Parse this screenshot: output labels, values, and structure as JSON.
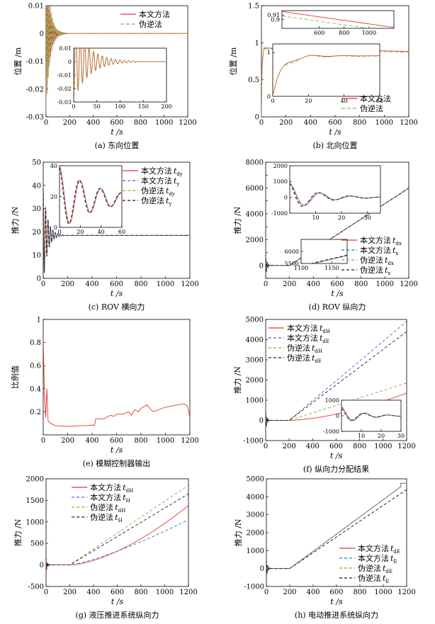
{
  "colors": {
    "red": "#e8362d",
    "blue": "#2f6fce",
    "olive": "#9aa23a",
    "black": "#1c1c1c",
    "green": "#8fb45a"
  },
  "chart_data": [
    {
      "id": "a",
      "type": "line",
      "caption": "(a) 东向位置",
      "xlabel": "t /s",
      "ylabel": "位置 /m",
      "xlim": [
        0,
        1200
      ],
      "ylim": [
        -0.03,
        0.01
      ],
      "xticks": [
        0,
        200,
        400,
        600,
        800,
        1000,
        1200
      ],
      "yticks": [
        -0.03,
        -0.02,
        -0.01,
        0,
        0.01
      ],
      "ytick_labels": [
        "-0.03",
        "-0.02",
        "-0.01",
        "0",
        "0.01"
      ],
      "legend_position": "top-right",
      "series": [
        {
          "name": "本文方法",
          "color": "red",
          "dash": "",
          "model": "decay",
          "params": {
            "base": 0,
            "amp": -0.029,
            "tau": 32,
            "period": 9.5,
            "phase": 0,
            "slope": 0,
            "start": 0
          }
        },
        {
          "name": "伪逆法",
          "color": "green",
          "dash": "5,3",
          "model": "decay",
          "params": {
            "base": 0,
            "amp": -0.029,
            "tau": 32,
            "period": 9.5,
            "phase": 0.3,
            "slope": 0,
            "start": 0
          }
        }
      ],
      "inset": {
        "xlim": [
          0,
          200
        ],
        "ylim": [
          -0.03,
          0.01
        ],
        "xticks": [
          0,
          50,
          100,
          150,
          200
        ],
        "yticks": [
          -0.03,
          -0.02,
          -0.01,
          0,
          0.01
        ],
        "ytick_labels": [
          "-0.03",
          "-0.02",
          "-0.01",
          "0",
          "0.01"
        ],
        "series_ref": [
          0,
          1
        ]
      }
    },
    {
      "id": "b",
      "type": "line",
      "caption": "(b) 北向位置",
      "xlabel": "t /s",
      "ylabel": "位置 /m",
      "xlim": [
        0,
        1200
      ],
      "ylim": [
        0,
        1.5
      ],
      "xticks": [
        0,
        200,
        400,
        600,
        800,
        1000,
        1200
      ],
      "yticks": [
        0,
        0.5,
        1,
        1.5
      ],
      "ytick_labels": [
        "0",
        "0.5",
        "1",
        "1.5"
      ],
      "legend_position": "bottom-right",
      "series": [
        {
          "name": "本文方法",
          "color": "red",
          "dash": "",
          "model": "step",
          "params": {
            "base": 0.93,
            "amp": 0.1,
            "tau": 14,
            "period": 18,
            "phase": 0,
            "rise": 5,
            "slope": -4e-05,
            "start": 0
          }
        },
        {
          "name": "伪逆法",
          "color": "green",
          "dash": "5,3",
          "model": "step",
          "params": {
            "base": 0.92,
            "amp": 0.14,
            "tau": 14,
            "period": 18,
            "phase": 0.4,
            "rise": 5,
            "slope": -4e-05,
            "start": 0
          }
        }
      ],
      "insets": [
        {
          "xlim": [
            300,
            1200
          ],
          "ylim": [
            0.88,
            0.92
          ],
          "xticks": [
            600,
            800,
            1000
          ],
          "yticks": [
            0.9,
            0.91
          ],
          "ytick_labels": [
            "0.9",
            "0.91"
          ]
        },
        {
          "xlim": [
            0,
            60
          ],
          "ylim": [
            0,
            1.2
          ],
          "xticks": [
            0,
            20,
            40,
            60
          ],
          "yticks": [
            0,
            1
          ],
          "ytick_labels": [
            "0",
            "1"
          ]
        }
      ]
    },
    {
      "id": "c",
      "type": "line",
      "caption": "(c) ROV 横向力",
      "xlabel": "t /s",
      "ylabel": "推力 /N",
      "xlim": [
        0,
        1200
      ],
      "ylim": [
        0,
        50
      ],
      "xticks": [
        0,
        200,
        400,
        600,
        800,
        1000,
        1200
      ],
      "yticks": [
        0,
        10,
        20,
        30,
        40,
        50
      ],
      "ytick_labels": [
        "0",
        "10",
        "20",
        "30",
        "40",
        "50"
      ],
      "legend_position": "top-right",
      "series": [
        {
          "name": "本文方法",
          "sub": "dy",
          "color": "red",
          "dash": "",
          "model": "decay",
          "params": {
            "base": 18.5,
            "amp": 21,
            "tau": 35,
            "period": 20,
            "phase": 0,
            "slope": 0,
            "start": 0
          }
        },
        {
          "name": "本文方法",
          "sub": "y",
          "color": "blue",
          "dash": "4,3",
          "model": "decay",
          "params": {
            "base": 18.5,
            "amp": 21,
            "tau": 35,
            "period": 20,
            "phase": 0.1,
            "slope": 0,
            "start": 0
          }
        },
        {
          "name": "伪逆法",
          "sub": "dy",
          "color": "olive",
          "dash": "4,3",
          "model": "decay",
          "params": {
            "base": 18.5,
            "amp": 21,
            "tau": 35,
            "period": 20,
            "phase": 0.2,
            "slope": 0,
            "start": 0
          }
        },
        {
          "name": "伪逆法",
          "sub": "y",
          "color": "black",
          "dash": "4,3",
          "model": "decay",
          "params": {
            "base": 18.5,
            "amp": 21,
            "tau": 35,
            "period": 20,
            "phase": 0.25,
            "slope": 0,
            "start": 0
          }
        }
      ],
      "inset": {
        "xlim": [
          0,
          60
        ],
        "ylim": [
          0,
          40
        ],
        "xticks": [
          0,
          20,
          40,
          60
        ],
        "yticks": [
          0,
          20,
          40
        ],
        "ytick_labels": [
          "0",
          "20",
          "40"
        ]
      }
    },
    {
      "id": "d",
      "type": "line",
      "caption": "(d) ROV 纵向力",
      "xlabel": "t /s",
      "ylabel": "推力 /N",
      "xlim": [
        0,
        1200
      ],
      "ylim": [
        -1000,
        8000
      ],
      "xticks": [
        0,
        200,
        400,
        600,
        800,
        1000,
        1200
      ],
      "yticks": [
        -1000,
        0,
        1000,
        2000,
        3000,
        4000,
        5000,
        6000,
        7000,
        8000
      ],
      "ytick_labels": [
        "",
        "0",
        "",
        "2000",
        "",
        "4000",
        "",
        "6000",
        "",
        "8000"
      ],
      "legend_position": "bottom-right",
      "series": [
        {
          "name": "本文方法",
          "sub": "dx",
          "color": "red",
          "dash": "",
          "model": "ramp",
          "params": {
            "base": 0,
            "amp": 1500,
            "tau": 10,
            "period": 12,
            "phase": 0,
            "start": 200,
            "slope": 5.98
          }
        },
        {
          "name": "本文方法",
          "sub": "x",
          "color": "blue",
          "dash": "4,3",
          "model": "ramp",
          "params": {
            "base": 0,
            "amp": 1500,
            "tau": 10,
            "period": 12,
            "phase": 0.1,
            "start": 200,
            "slope": 5.98
          }
        },
        {
          "name": "伪逆法",
          "sub": "dx",
          "color": "olive",
          "dash": "4,3",
          "model": "ramp",
          "params": {
            "base": 0,
            "amp": 1600,
            "tau": 10,
            "period": 12,
            "phase": 0.3,
            "start": 200,
            "slope": 6.0
          }
        },
        {
          "name": "伪逆法",
          "sub": "x",
          "color": "black",
          "dash": "4,3",
          "model": "ramp",
          "params": {
            "base": 0,
            "amp": 1600,
            "tau": 10,
            "period": 12,
            "phase": 0.35,
            "start": 200,
            "slope": 6.0
          }
        }
      ],
      "insets": [
        {
          "xlim": [
            0,
            35
          ],
          "ylim": [
            -1000,
            2000
          ],
          "xticks": [
            10,
            20,
            30
          ],
          "yticks": [
            -1000,
            0,
            1000,
            2000
          ],
          "ytick_labels": [
            "-1000",
            "0",
            "1000",
            "2000"
          ]
        },
        {
          "xlim": [
            1100,
            1175
          ],
          "ylim": [
            5500,
            6500
          ],
          "xticks": [
            1100,
            1150
          ],
          "yticks": [
            5500,
            6000
          ],
          "ytick_labels": [
            "5500",
            "6000"
          ]
        }
      ]
    },
    {
      "id": "e",
      "type": "line",
      "caption": "(e) 模糊控制器输出",
      "xlabel": "t /s",
      "ylabel": "比例值",
      "xlim": [
        0,
        1200
      ],
      "ylim": [
        0,
        1
      ],
      "xticks": [
        0,
        200,
        400,
        600,
        800,
        1000,
        1200
      ],
      "yticks": [
        0.2,
        0.4,
        0.6,
        0.8,
        1
      ],
      "ytick_labels": [
        "0.2",
        "0.4",
        "0.6",
        "0.8",
        "1"
      ],
      "series": [
        {
          "name": "比例值",
          "color": "red",
          "dash": "",
          "x": [
            0,
            10,
            20,
            30,
            40,
            60,
            100,
            150,
            200,
            250,
            300,
            350,
            400,
            420,
            430,
            440,
            500,
            550,
            580,
            600,
            650,
            700,
            720,
            750,
            780,
            800,
            850,
            880,
            900,
            950,
            1000,
            1050,
            1100,
            1150,
            1180,
            1200
          ],
          "y": [
            0.85,
            0.35,
            0.15,
            0.4,
            0.12,
            0.1,
            0.08,
            0.075,
            0.075,
            0.075,
            0.08,
            0.08,
            0.085,
            0.08,
            0.14,
            0.14,
            0.14,
            0.17,
            0.16,
            0.18,
            0.18,
            0.2,
            0.17,
            0.22,
            0.2,
            0.23,
            0.26,
            0.22,
            0.2,
            0.22,
            0.24,
            0.25,
            0.26,
            0.27,
            0.25,
            0.15
          ]
        }
      ]
    },
    {
      "id": "f",
      "type": "line",
      "caption": "(f) 纵向力分配结果",
      "xlabel": "t /s",
      "ylabel": "推力 /N",
      "xlim": [
        0,
        1200
      ],
      "ylim": [
        -1000,
        5000
      ],
      "xticks": [
        0,
        200,
        400,
        600,
        800,
        1000,
        1200
      ],
      "yticks": [
        -1000,
        0,
        1000,
        2000,
        3000,
        4000,
        5000
      ],
      "ytick_labels": [
        "-1000",
        "0",
        "1000",
        "2000",
        "3000",
        "4000",
        "5000"
      ],
      "legend_position": "top-left",
      "series": [
        {
          "name": "本文方法",
          "sub": "dH",
          "color": "red",
          "dash": "",
          "model": "curve",
          "params": {
            "base": 0,
            "amp": 900,
            "tau": 10,
            "period": 12,
            "phase": 0,
            "start": 200,
            "end_val": 1350,
            "power": 1.6
          }
        },
        {
          "name": "本文方法",
          "sub": "dE",
          "color": "blue",
          "dash": "4,3",
          "model": "curve",
          "params": {
            "base": 0,
            "amp": 1000,
            "tau": 10,
            "period": 12,
            "phase": 0.1,
            "start": 200,
            "end_val": 4900,
            "power": 1.0
          }
        },
        {
          "name": "伪逆法",
          "sub": "dH",
          "color": "olive",
          "dash": "4,3",
          "model": "curve",
          "params": {
            "base": 0,
            "amp": 800,
            "tau": 10,
            "period": 12,
            "phase": 0.2,
            "start": 200,
            "end_val": 1850,
            "power": 1.0
          }
        },
        {
          "name": "伪逆法",
          "sub": "dE",
          "color": "black",
          "dash": "4,3",
          "model": "curve",
          "params": {
            "base": 0,
            "amp": 800,
            "tau": 10,
            "period": 12,
            "phase": 0.3,
            "start": 200,
            "end_val": 4400,
            "power": 1.0
          }
        }
      ],
      "inset": {
        "xlim": [
          0,
          30
        ],
        "ylim": [
          -1000,
          1000
        ],
        "xticks": [
          10,
          20,
          30
        ],
        "yticks": [
          -1000,
          0,
          1000
        ],
        "ytick_labels": [
          "-1000",
          "0",
          "1000"
        ]
      }
    },
    {
      "id": "g",
      "type": "line",
      "caption": "(g) 液压推进系统纵向力",
      "xlabel": "t /s",
      "ylabel": "推力 /N",
      "xlim": [
        0,
        1200
      ],
      "ylim": [
        -500,
        2000
      ],
      "xticks": [
        0,
        200,
        400,
        600,
        800,
        1000,
        1200
      ],
      "yticks": [
        -500,
        0,
        500,
        1000,
        1500,
        2000
      ],
      "ytick_labels": [
        "-500",
        "0",
        "500",
        "1000",
        "1500",
        "2000"
      ],
      "legend_position": "top-center",
      "series": [
        {
          "name": "本文方法",
          "sub": "dH",
          "color": "red",
          "dash": "",
          "model": "curve",
          "params": {
            "base": 0,
            "amp": 300,
            "tau": 10,
            "period": 12,
            "phase": 0,
            "start": 200,
            "end_val": 1380,
            "power": 1.6
          }
        },
        {
          "name": "本文方法",
          "sub": "H",
          "color": "blue",
          "dash": "4,3",
          "model": "curve",
          "params": {
            "base": 0,
            "amp": 300,
            "tau": 10,
            "period": 12,
            "phase": 0.1,
            "start": 200,
            "end_val": 1050,
            "power": 1.3
          }
        },
        {
          "name": "伪逆法",
          "sub": "dH",
          "color": "olive",
          "dash": "4,3",
          "model": "curve",
          "params": {
            "base": 0,
            "amp": 300,
            "tau": 10,
            "period": 12,
            "phase": 0.2,
            "start": 200,
            "end_val": 1850,
            "power": 1.0
          }
        },
        {
          "name": "伪逆法",
          "sub": "H",
          "color": "black",
          "dash": "4,3",
          "model": "curve",
          "params": {
            "base": 0,
            "amp": 300,
            "tau": 10,
            "period": 12,
            "phase": 0.3,
            "start": 200,
            "end_val": 1650,
            "power": 1.0
          }
        }
      ]
    },
    {
      "id": "h",
      "type": "line",
      "caption": "(h) 电动推进系统纵向力",
      "xlabel": "t /s",
      "ylabel": "推力 /N",
      "xlim": [
        0,
        1200
      ],
      "ylim": [
        -1000,
        5000
      ],
      "xticks": [
        0,
        200,
        400,
        600,
        800,
        1000,
        1200
      ],
      "yticks": [
        -1000,
        0,
        1000,
        2000,
        3000,
        4000,
        5000
      ],
      "ytick_labels": [
        "-1000",
        "0",
        "1000",
        "2000",
        "3000",
        "4000",
        "5000"
      ],
      "legend_position": "bottom-right",
      "series": [
        {
          "name": "本文方法",
          "sub": "dE",
          "color": "red",
          "dash": "",
          "model": "curve",
          "params": {
            "base": 0,
            "amp": 900,
            "tau": 10,
            "period": 12,
            "phase": 0,
            "start": 200,
            "end_val": 4800,
            "power": 1.0,
            "sat_t": 1150,
            "sat_v": 4750
          }
        },
        {
          "name": "本文方法",
          "sub": "E",
          "color": "blue",
          "dash": "4,3",
          "model": "curve",
          "params": {
            "base": 0,
            "amp": 900,
            "tau": 10,
            "period": 12,
            "phase": 0.1,
            "start": 200,
            "end_val": 4800,
            "power": 1.0,
            "sat_t": 1150,
            "sat_v": 4750
          }
        },
        {
          "name": "伪逆法",
          "sub": "dE",
          "color": "olive",
          "dash": "4,3",
          "model": "curve",
          "params": {
            "base": 0,
            "amp": 800,
            "tau": 10,
            "period": 12,
            "phase": 0.2,
            "start": 200,
            "end_val": 4400,
            "power": 1.0
          }
        },
        {
          "name": "伪逆法",
          "sub": "E",
          "color": "black",
          "dash": "4,3",
          "model": "curve",
          "params": {
            "base": 0,
            "amp": 800,
            "tau": 10,
            "period": 12,
            "phase": 0.3,
            "start": 200,
            "end_val": 4400,
            "power": 1.0
          }
        }
      ]
    }
  ]
}
